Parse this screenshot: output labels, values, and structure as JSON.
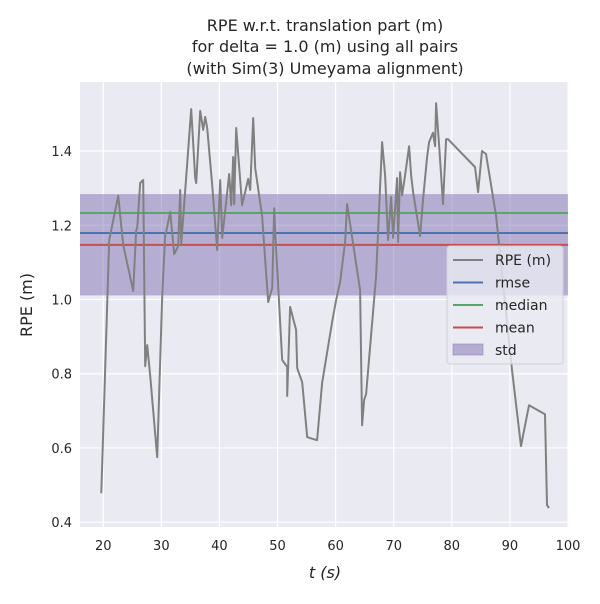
{
  "chart_data": {
    "type": "line",
    "title": [
      "RPE w.r.t. translation part (m)",
      "for delta = 1.0 (m) using all pairs",
      "(with Sim(3) Umeyama alignment)"
    ],
    "xlabel": "t (s)",
    "ylabel": "RPE (m)",
    "xlim": [
      16.0,
      100
    ],
    "ylim": [
      0.387,
      1.586
    ],
    "xticks": [
      20,
      30,
      40,
      50,
      60,
      70,
      80,
      90,
      100
    ],
    "yticks": [
      0.4,
      0.6,
      0.8,
      1.0,
      1.2,
      1.4
    ],
    "ytick_labels": [
      "0.4",
      "0.6",
      "0.8",
      "1.0",
      "1.2",
      "1.4"
    ],
    "grid": true,
    "legend_position": "center-right",
    "series": [
      {
        "name": "RPE (m)",
        "color": "#808080",
        "x": [
          19.66,
          21.03,
          22.58,
          23.44,
          25.16,
          25.68,
          25.85,
          26.37,
          26.88,
          27.23,
          27.57,
          28.09,
          29.29,
          30.15,
          30.67,
          30.84,
          31.53,
          32.22,
          32.9,
          33.25,
          33.42,
          33.94,
          35.14,
          35.83,
          36.0,
          36.69,
          37.2,
          37.55,
          37.89,
          38.75,
          39.61,
          40.13,
          40.47,
          41.68,
          42.02,
          42.37,
          42.54,
          42.88,
          43.91,
          44.95,
          45.29,
          45.81,
          46.15,
          47.35,
          48.39,
          49.08,
          49.42,
          49.59,
          50.8,
          51.66,
          51.66,
          52.17,
          53.2,
          53.38,
          54.24,
          55.1,
          56.82,
          57.68,
          59.4,
          60.09,
          60.77,
          61.63,
          61.98,
          64.22,
          64.56,
          64.9,
          65.25,
          66.97,
          68.0,
          68.52,
          69.04,
          69.55,
          69.89,
          70.58,
          70.75,
          71.1,
          71.44,
          71.96,
          72.65,
          72.99,
          73.33,
          74.54,
          75.05,
          75.74,
          76.09,
          76.77,
          77.12,
          77.29,
          77.81,
          78.49,
          79.01,
          79.35,
          84.0,
          84.52,
          85.2,
          85.89,
          87.61,
          90.36,
          91.91,
          93.29,
          96.04,
          96.39,
          96.73
        ],
        "y": [
          0.478,
          1.16,
          1.279,
          1.147,
          1.023,
          1.187,
          1.192,
          1.314,
          1.322,
          0.82,
          0.877,
          0.794,
          0.575,
          1.009,
          1.176,
          1.182,
          1.236,
          1.122,
          1.144,
          1.295,
          1.149,
          1.257,
          1.513,
          1.327,
          1.314,
          1.508,
          1.457,
          1.492,
          1.462,
          1.308,
          1.133,
          1.322,
          1.166,
          1.338,
          1.254,
          1.384,
          1.257,
          1.462,
          1.254,
          1.325,
          1.295,
          1.489,
          1.354,
          1.225,
          0.993,
          1.031,
          1.246,
          1.187,
          0.837,
          0.818,
          0.74,
          0.98,
          0.918,
          0.815,
          0.777,
          0.629,
          0.621,
          0.775,
          0.939,
          0.998,
          1.047,
          1.155,
          1.257,
          1.025,
          0.661,
          0.729,
          0.745,
          1.063,
          1.424,
          1.335,
          1.16,
          1.276,
          1.166,
          1.327,
          1.155,
          1.343,
          1.281,
          1.335,
          1.413,
          1.335,
          1.289,
          1.171,
          1.271,
          1.384,
          1.424,
          1.449,
          1.413,
          1.529,
          1.416,
          1.257,
          1.432,
          1.432,
          1.357,
          1.289,
          1.4,
          1.392,
          1.227,
          0.81,
          0.605,
          0.715,
          0.691,
          0.446,
          0.438
        ]
      },
      {
        "name": "rmse",
        "color": "#4c72b0",
        "value": 1.179
      },
      {
        "name": "median",
        "color": "#55a868",
        "value": 1.233
      },
      {
        "name": "mean",
        "color": "#c44e52",
        "value": 1.147
      },
      {
        "name": "std",
        "color": "#8172b2",
        "range": [
          1.011,
          1.284
        ]
      }
    ]
  }
}
